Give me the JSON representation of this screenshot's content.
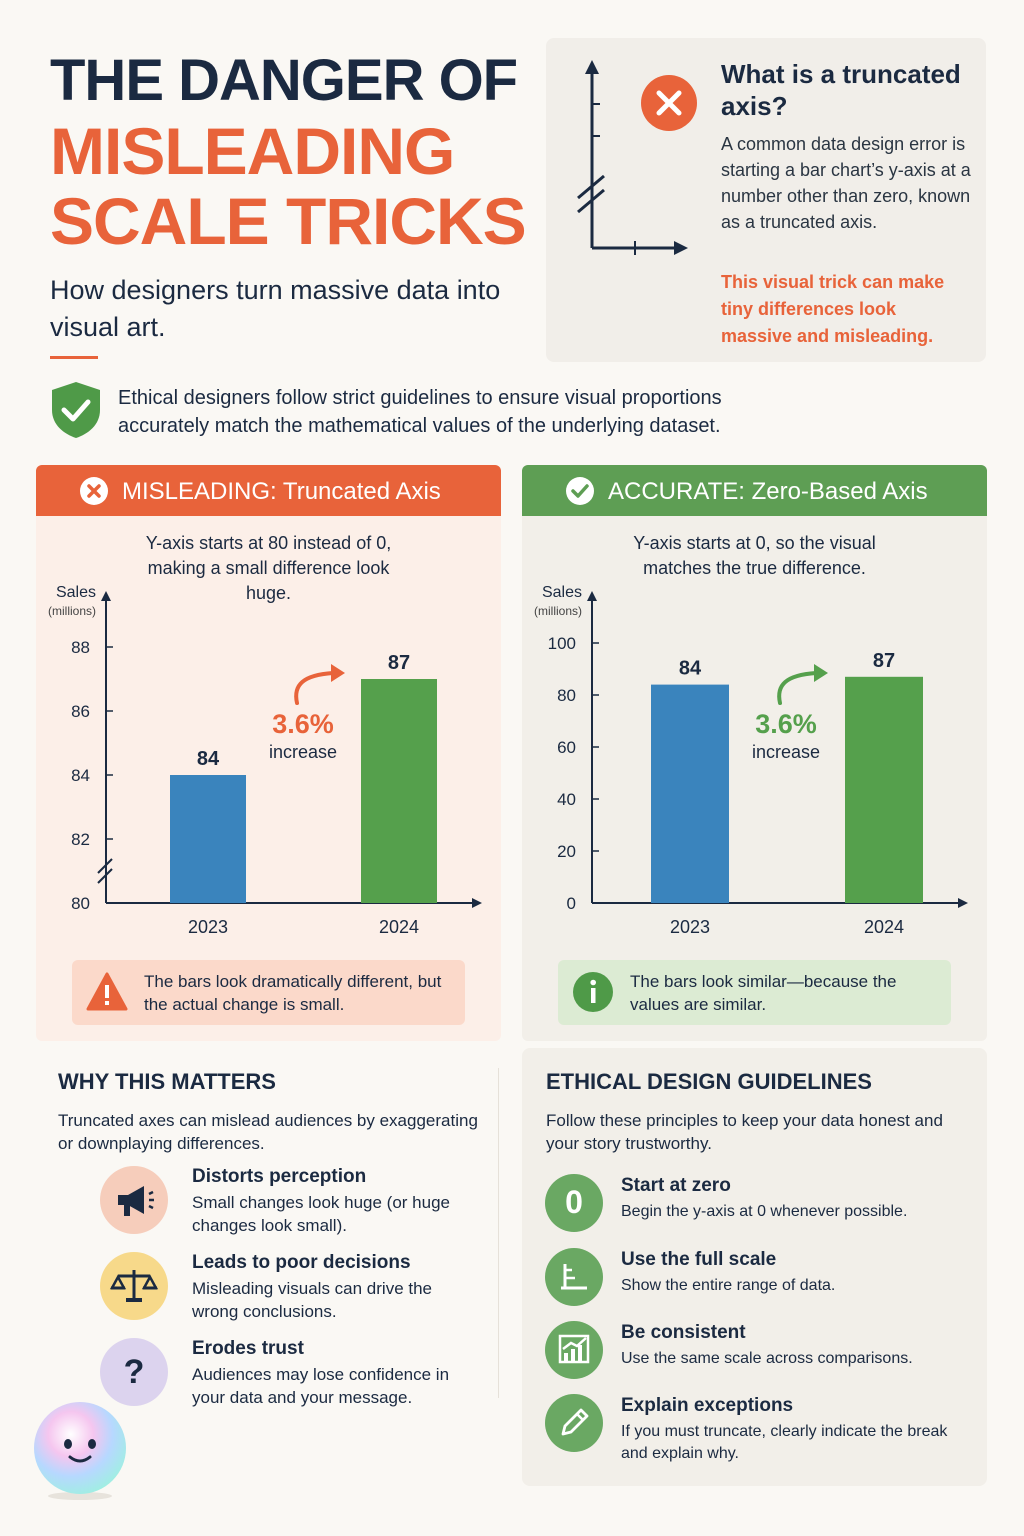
{
  "header": {
    "title_line1": "THE DANGER OF",
    "title_line2": "MISLEADING",
    "title_line3": "SCALE TRICKS",
    "subtitle": "How designers turn massive data into visual art."
  },
  "definition": {
    "title": "What is a truncated axis?",
    "body": "A common data design error is starting a bar chart’s y-axis at a number other than zero, known as a truncated axis.",
    "warning": "This visual trick can make tiny differences look massive and misleading."
  },
  "ethics_banner": {
    "text": "Ethical designers follow strict guidelines to ensure visual proportions accurately match the mathematical values of the underlying dataset."
  },
  "misleading_panel": {
    "heading": "MISLEADING: Truncated Axis",
    "description": "Y-axis starts at 80 instead of 0, making a small difference look huge.",
    "note": "The bars look dramatically different, but the actual change is small."
  },
  "accurate_panel": {
    "heading": "ACCURATE: Zero-Based Axis",
    "description": "Y-axis starts at 0, so the visual matches the true difference.",
    "note": "The bars look similar—because the values are similar."
  },
  "chart_data": [
    {
      "type": "bar",
      "ylabel": "Sales",
      "ylabel_unit": "(millions)",
      "categories": [
        "2023",
        "2024"
      ],
      "values": [
        84,
        87
      ],
      "ylim": [
        80,
        89
      ],
      "yticks": [
        80,
        82,
        84,
        86,
        88
      ],
      "axis_break": true,
      "colors": [
        "#3a84bd",
        "#55a04c"
      ],
      "annotation": {
        "value": "3.6%",
        "label": "increase",
        "color": "#e8633a"
      }
    },
    {
      "type": "bar",
      "ylabel": "Sales",
      "ylabel_unit": "(millions)",
      "categories": [
        "2023",
        "2024"
      ],
      "values": [
        84,
        87
      ],
      "ylim": [
        0,
        100
      ],
      "yticks": [
        0,
        20,
        40,
        60,
        80,
        100
      ],
      "axis_break": false,
      "colors": [
        "#3a84bd",
        "#55a04c"
      ],
      "annotation": {
        "value": "3.6%",
        "label": "increase",
        "color": "#55a04c"
      }
    }
  ],
  "why_matters": {
    "title": "WHY THIS MATTERS",
    "intro": "Truncated axes can mislead audiences by exaggerating or downplaying differences.",
    "items": [
      {
        "title": "Distorts perception",
        "desc": "Small changes look huge (or huge changes look small).",
        "icon": "megaphone-icon",
        "color": "#f6cdbb"
      },
      {
        "title": "Leads to poor decisions",
        "desc": "Misleading visuals can drive the wrong conclusions.",
        "icon": "scales-icon",
        "color": "#f7d98a"
      },
      {
        "title": "Erodes trust",
        "desc": "Audiences may lose confidence in your data and your message.",
        "icon": "question-icon",
        "color": "#dcd3ee"
      }
    ]
  },
  "guidelines": {
    "title": "ETHICAL DESIGN GUIDELINES",
    "intro": "Follow these principles to keep your data honest and your story trustworthy.",
    "items": [
      {
        "title": "Start at zero",
        "desc": "Begin the y-axis at 0 whenever possible.",
        "icon": "zero-icon",
        "glyph": "0"
      },
      {
        "title": "Use the full scale",
        "desc": "Show the entire range of data.",
        "icon": "scale-ruler-icon"
      },
      {
        "title": "Be consistent",
        "desc": "Use the same scale across comparisons.",
        "icon": "chart-icon"
      },
      {
        "title": "Explain exceptions",
        "desc": "If you must truncate, clearly indicate the break and explain why.",
        "icon": "pencil-icon"
      }
    ]
  }
}
